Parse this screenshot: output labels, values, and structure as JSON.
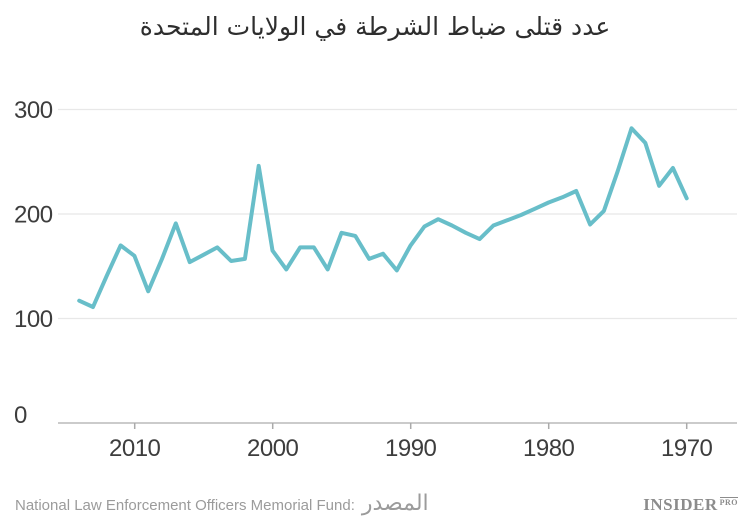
{
  "title": "عدد قتلى ضباط الشرطة في الولايات المتحدة",
  "chart_data": {
    "type": "line",
    "title": "عدد قتلى ضباط الشرطة في الولايات المتحدة",
    "x_axis": {
      "direction": "reversed",
      "ticks": [
        "2010",
        "2000",
        "1990",
        "1980",
        "1970"
      ],
      "range": [
        2014,
        1970
      ]
    },
    "y_axis": {
      "ticks": [
        "300",
        "200",
        "100",
        "0"
      ],
      "range": [
        0,
        300
      ]
    },
    "grid": "horizontal",
    "legend": "none",
    "line_color": "#68bec9",
    "years": [
      2014,
      2013,
      2012,
      2011,
      2010,
      2009,
      2008,
      2007,
      2006,
      2005,
      2004,
      2003,
      2002,
      2001,
      2000,
      1999,
      1998,
      1997,
      1996,
      1995,
      1994,
      1993,
      1992,
      1991,
      1990,
      1989,
      1988,
      1987,
      1986,
      1985,
      1984,
      1983,
      1982,
      1981,
      1980,
      1979,
      1978,
      1977,
      1976,
      1975,
      1974,
      1973,
      1972,
      1971,
      1970
    ],
    "values": [
      117,
      111,
      141,
      170,
      160,
      126,
      157,
      191,
      154,
      161,
      168,
      155,
      157,
      246,
      165,
      147,
      168,
      168,
      147,
      182,
      179,
      157,
      162,
      146,
      170,
      188,
      195,
      189,
      182,
      176,
      189,
      194,
      199,
      205,
      211,
      216,
      222,
      190,
      203,
      241,
      282,
      268,
      227,
      244,
      215
    ]
  },
  "footer": {
    "source_label_en": "National Law Enforcement Officers Memorial Fund:",
    "source_label_ar": "المصدر",
    "logo_main": "INSIDER",
    "logo_sub": "PRO"
  }
}
